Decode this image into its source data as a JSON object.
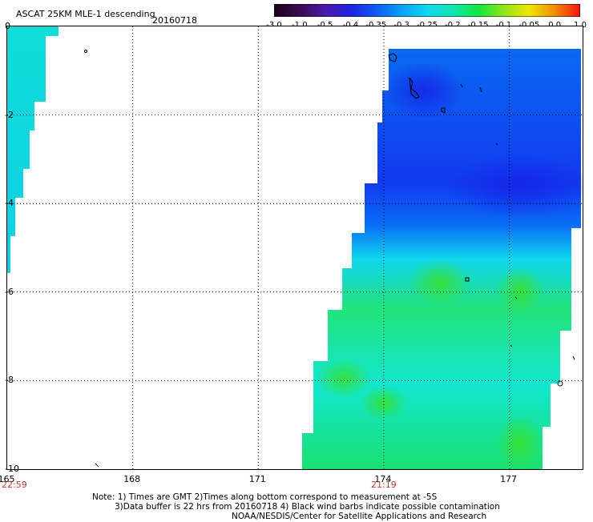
{
  "header": {
    "title": "ASCAT 25KM MLE-1 descending",
    "date": "20160718"
  },
  "colorbar": {
    "ticks": [
      "-3.0",
      "-1.0",
      "-0.5",
      "-0.4",
      "-0.35",
      "-0.3",
      "-0.25",
      "-0.2",
      "-0.15",
      "-0.1",
      "-0.05",
      "0.0",
      "1.0"
    ],
    "colors": [
      "#1a001a",
      "#3b0a4f",
      "#4b1aa8",
      "#1f22e0",
      "#0f5bf5",
      "#0aa0f5",
      "#12d8f0",
      "#10e6b2",
      "#13e640",
      "#8fe61b",
      "#f0e600",
      "#f28c00",
      "#f21414"
    ]
  },
  "map": {
    "lon_ticks": [
      "165",
      "168",
      "171",
      "174",
      "177"
    ],
    "lat_ticks": [
      "0",
      "-2",
      "-4",
      "-6",
      "-8",
      "-10"
    ],
    "start_time": "22:59",
    "swath_time": "21:19",
    "grid": "dotted",
    "lon_range": [
      165,
      179
    ],
    "lat_range": [
      -10,
      0
    ]
  },
  "notes": {
    "line1": "Note: 1) Times are GMT 2)Times along bottom correspond to measurement at -5S",
    "line2": "3)Data buffer is 22 hrs from 20160718 4) Black wind barbs indicate possible contamination",
    "line3": "NOAA/NESDIS/Center for Satellite Applications and Research"
  },
  "colors": {
    "swath_blue": "#1f3ef0",
    "swath_cyan": "#12e0e8",
    "swath_green": "#20e25a"
  }
}
